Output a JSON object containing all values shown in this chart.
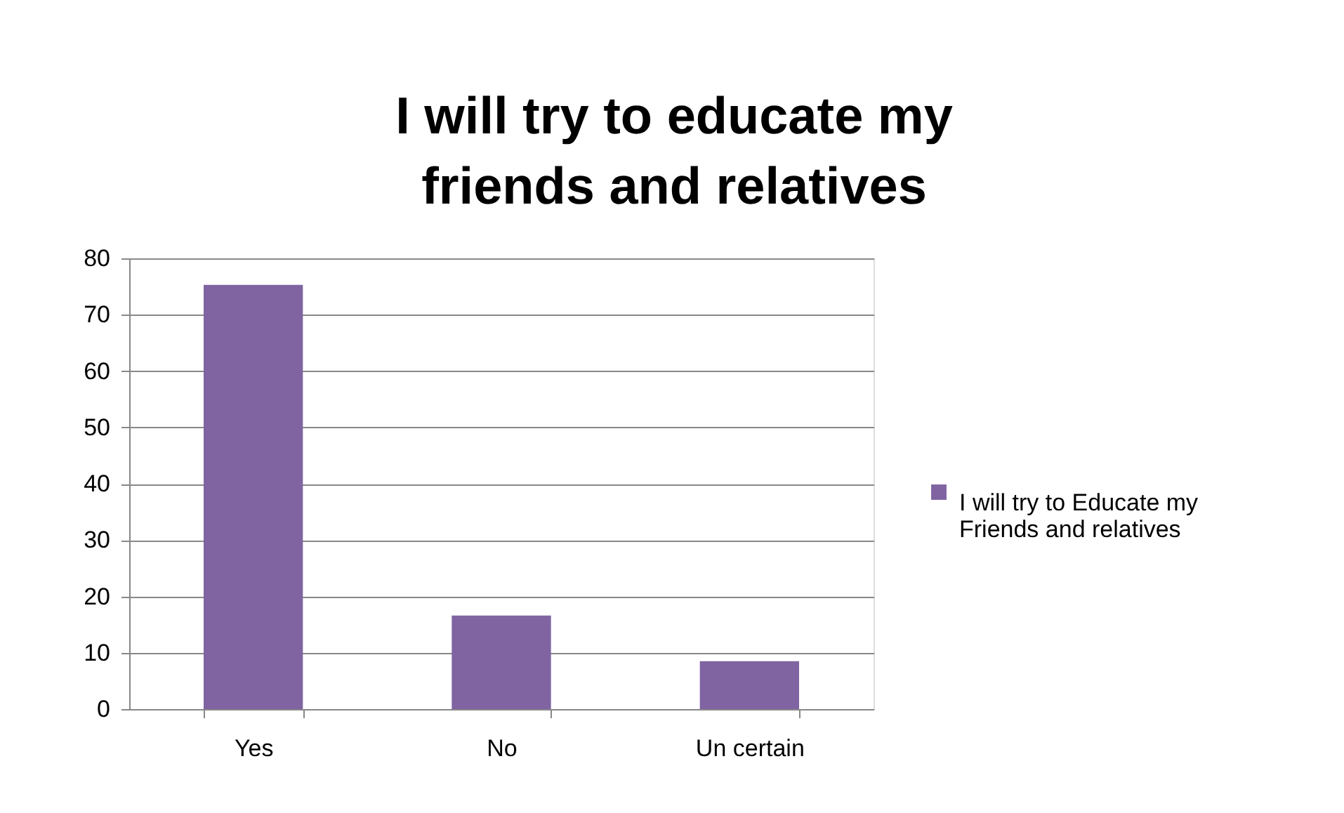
{
  "chart_data": {
    "type": "bar",
    "title": "I will try to educate  my friends and relatives",
    "categories": [
      "Yes",
      "No",
      "Un certain"
    ],
    "series": [
      {
        "name": "I will try to Educate  my Friends and relatives",
        "color": "#8064a2",
        "values": [
          75.3,
          16.6,
          8.5
        ]
      }
    ],
    "ylim": [
      0,
      80
    ],
    "yticks": [
      0,
      10,
      20,
      30,
      40,
      50,
      60,
      70,
      80
    ],
    "grid": "y",
    "legend": "right"
  }
}
